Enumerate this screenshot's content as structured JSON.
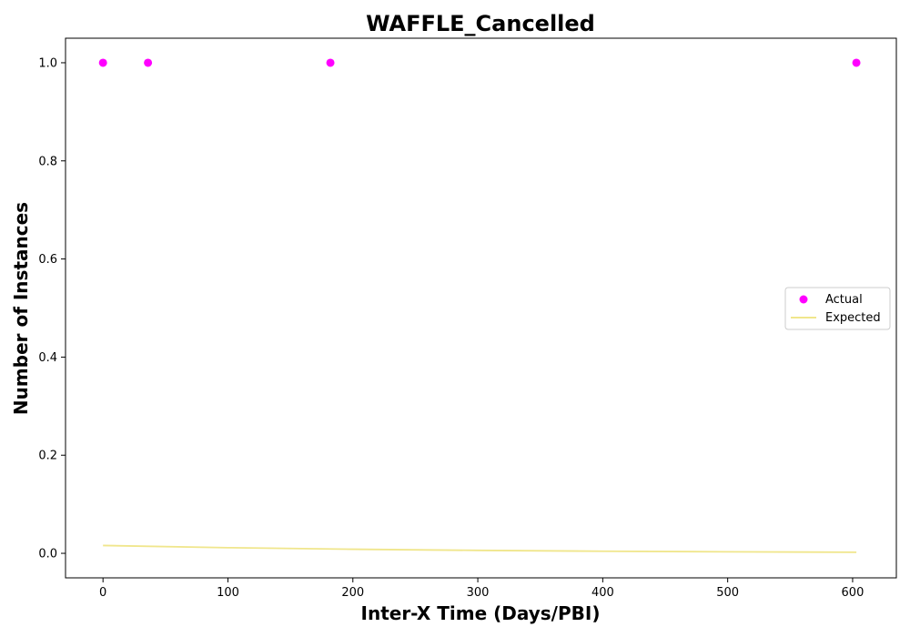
{
  "chart_data": {
    "type": "scatter",
    "title": "WAFFLE_Cancelled",
    "xlabel": "Inter-X Time (Days/PBI)",
    "ylabel": "Number of Instances",
    "xlim": [
      -30,
      635
    ],
    "ylim": [
      -0.05,
      1.05
    ],
    "xticks": [
      0,
      100,
      200,
      300,
      400,
      500,
      600
    ],
    "yticks": [
      0.0,
      0.2,
      0.4,
      0.6,
      0.8,
      1.0
    ],
    "grid": false,
    "legend_position": "center-right",
    "series": [
      {
        "name": "Actual",
        "kind": "scatter",
        "color": "#ff00ff",
        "x": [
          0,
          36,
          182,
          603
        ],
        "y": [
          1.0,
          1.0,
          1.0,
          1.0
        ]
      },
      {
        "name": "Expected",
        "kind": "line",
        "color": "#f0e68c",
        "x": [
          0,
          100,
          200,
          300,
          400,
          500,
          603
        ],
        "y": [
          0.016,
          0.0115,
          0.0083,
          0.006,
          0.0043,
          0.0031,
          0.0022
        ]
      }
    ]
  }
}
